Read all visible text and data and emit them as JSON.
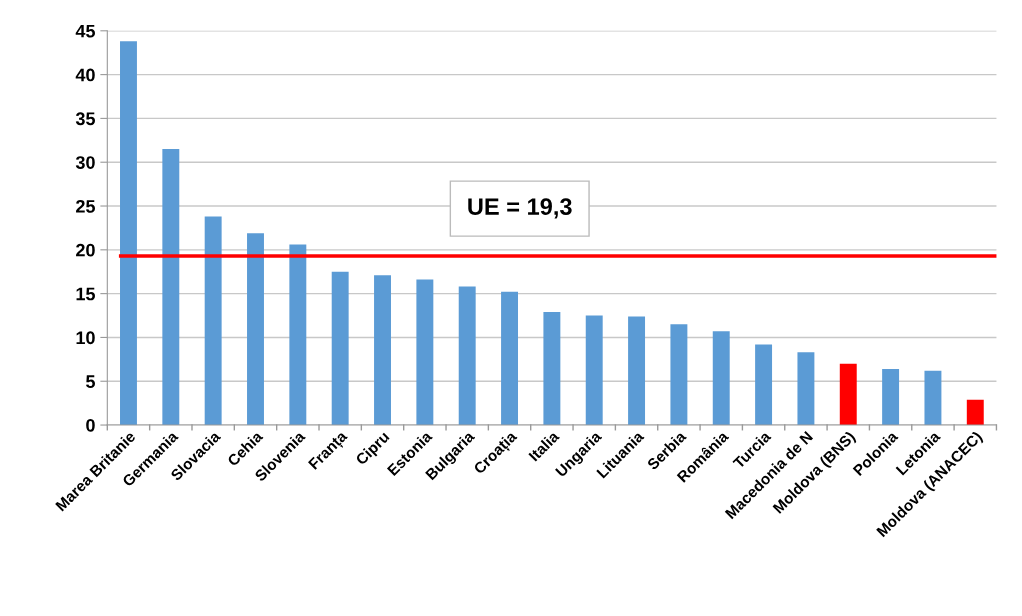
{
  "chart_data": {
    "type": "bar",
    "categories": [
      "Marea Britanie",
      "Germania",
      "Slovacia",
      "Cehia",
      "Slovenia",
      "Franța",
      "Cipru",
      "Estonia",
      "Bulgaria",
      "Croația",
      "Italia",
      "Ungaria",
      "Lituania",
      "Serbia",
      "România",
      "Turcia",
      "Macedonia de N",
      "Moldova (BNS)",
      "Polonia",
      "Letonia",
      "Moldova (ANACEC)"
    ],
    "values": [
      43.8,
      31.5,
      23.8,
      21.9,
      20.6,
      17.5,
      17.1,
      16.6,
      15.8,
      15.2,
      12.9,
      12.5,
      12.4,
      11.5,
      10.7,
      9.2,
      8.3,
      7.0,
      6.4,
      6.2,
      2.9
    ],
    "colors": [
      "#5b9bd5",
      "#5b9bd5",
      "#5b9bd5",
      "#5b9bd5",
      "#5b9bd5",
      "#5b9bd5",
      "#5b9bd5",
      "#5b9bd5",
      "#5b9bd5",
      "#5b9bd5",
      "#5b9bd5",
      "#5b9bd5",
      "#5b9bd5",
      "#5b9bd5",
      "#5b9bd5",
      "#5b9bd5",
      "#5b9bd5",
      "#ff0000",
      "#5b9bd5",
      "#5b9bd5",
      "#ff0000"
    ],
    "ylim": [
      0,
      45
    ],
    "yticks": [
      0,
      5,
      10,
      15,
      20,
      25,
      30,
      35,
      40,
      45
    ],
    "grid": "y",
    "legend": false,
    "ref_lines": [
      {
        "axis": "y",
        "value": 19.3,
        "label": "UE = 19,3",
        "color": "#ff0000",
        "line_style": "solid"
      }
    ]
  }
}
